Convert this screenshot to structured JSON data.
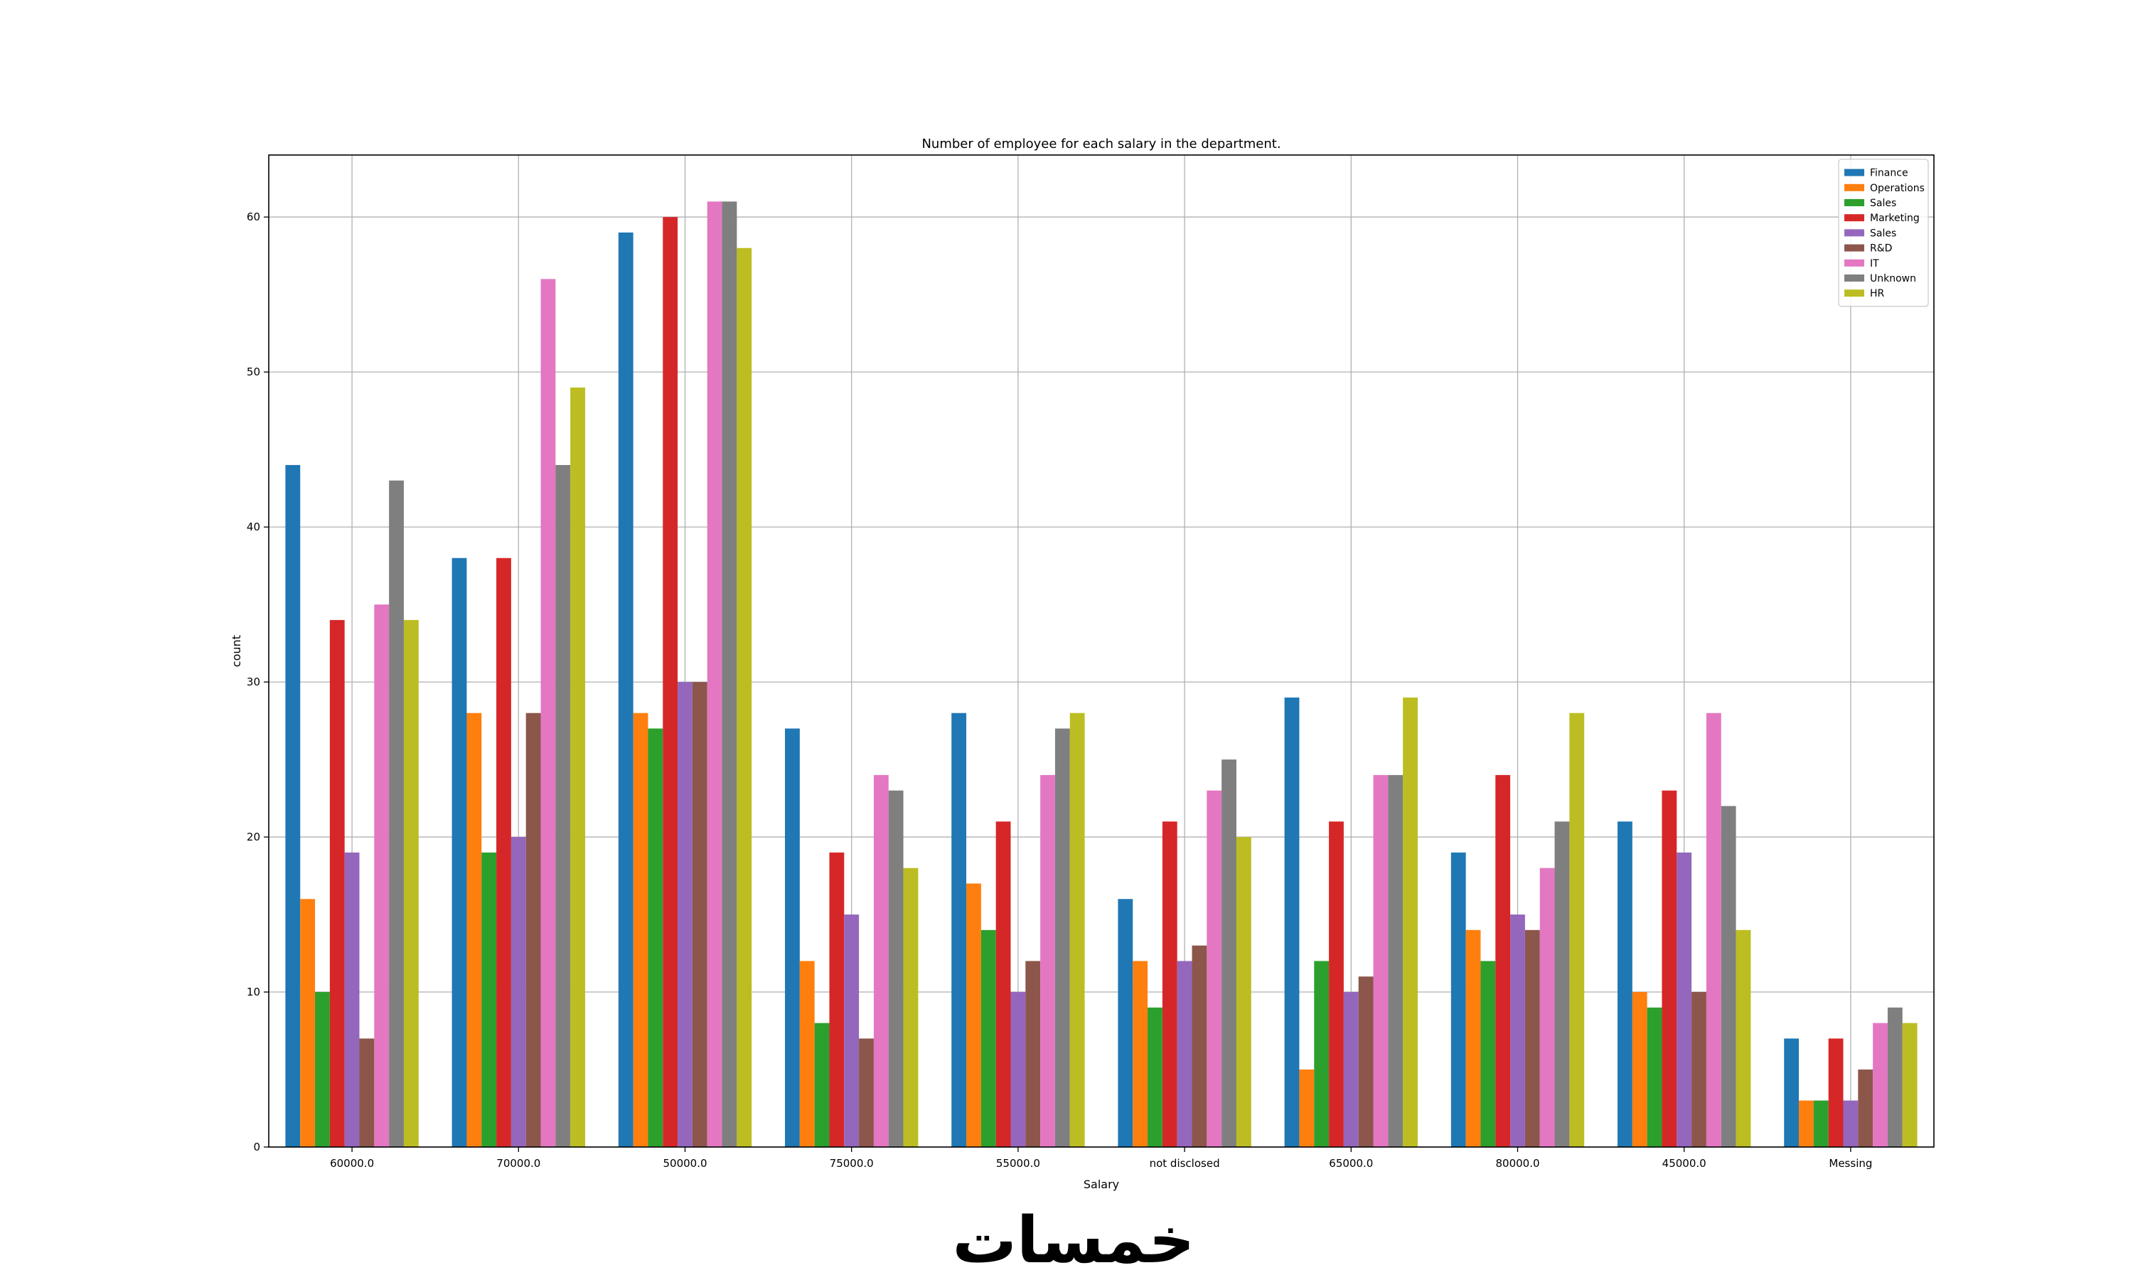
{
  "chart_data": {
    "type": "bar",
    "title": "Number of employee for each salary in the department.",
    "xlabel": "Salary",
    "ylabel": "count",
    "ylim": [
      0,
      64
    ],
    "yticks": [
      0,
      10,
      20,
      30,
      40,
      50,
      60
    ],
    "grid": true,
    "legend_position": "top-right",
    "categories": [
      "60000.0",
      "70000.0",
      "50000.0",
      "75000.0",
      "55000.0",
      "not disclosed",
      "65000.0",
      "80000.0",
      "45000.0",
      "Messing"
    ],
    "series": [
      {
        "name": "Finance",
        "color": "#1f77b4",
        "values": [
          44,
          38,
          59,
          27,
          28,
          16,
          29,
          19,
          21,
          7
        ]
      },
      {
        "name": "Operations",
        "color": "#ff7f0e",
        "values": [
          16,
          28,
          28,
          12,
          17,
          12,
          5,
          14,
          10,
          3
        ]
      },
      {
        "name": "Sales",
        "color": "#2ca02c",
        "values": [
          10,
          19,
          27,
          8,
          14,
          9,
          12,
          12,
          9,
          3
        ]
      },
      {
        "name": "Marketing",
        "color": "#d62728",
        "values": [
          34,
          38,
          60,
          19,
          21,
          21,
          21,
          24,
          23,
          7
        ]
      },
      {
        "name": "Sales",
        "color": "#9467bd",
        "values": [
          19,
          20,
          30,
          15,
          10,
          12,
          10,
          15,
          19,
          3
        ]
      },
      {
        "name": "R&D",
        "color": "#8c564b",
        "values": [
          7,
          28,
          30,
          7,
          12,
          13,
          11,
          14,
          10,
          5
        ]
      },
      {
        "name": "IT",
        "color": "#e377c2",
        "values": [
          35,
          56,
          61,
          24,
          24,
          23,
          24,
          18,
          28,
          8
        ]
      },
      {
        "name": "Unknown",
        "color": "#7f7f7f",
        "values": [
          43,
          44,
          61,
          23,
          27,
          25,
          24,
          21,
          22,
          9
        ]
      },
      {
        "name": "HR",
        "color": "#bcbd22",
        "values": [
          34,
          49,
          58,
          18,
          28,
          20,
          29,
          28,
          14,
          8
        ]
      }
    ]
  },
  "watermark": {
    "text": "خمسات"
  }
}
